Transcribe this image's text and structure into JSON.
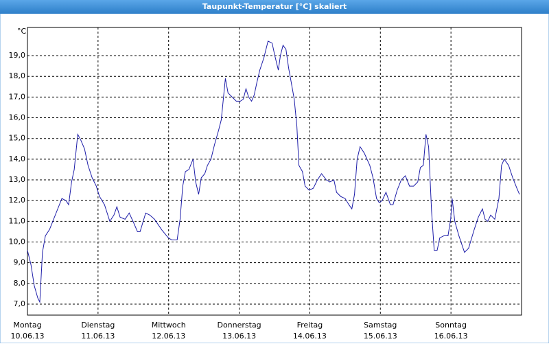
{
  "chart_data": {
    "type": "line",
    "title": "Taupunkt-Temperatur [°C] skaliert",
    "y_label": "°C",
    "xlim": [
      0,
      168
    ],
    "ylim": [
      6.47,
      20.36
    ],
    "grid": true,
    "xticks": [
      {
        "value": 0,
        "label": "Montag"
      },
      {
        "value": 24,
        "label": "Dienstag"
      },
      {
        "value": 48,
        "label": "Mittwoch"
      },
      {
        "value": 72,
        "label": "Donnerstag"
      },
      {
        "value": 96,
        "label": "Freitag"
      },
      {
        "value": 120,
        "label": "Samstag"
      },
      {
        "value": 144,
        "label": "Sonntag"
      }
    ],
    "xtick_dates": [
      "10.06.13",
      "11.06.13",
      "12.06.13",
      "13.06.13",
      "14.06.13",
      "15.06.13",
      "16.06.13"
    ],
    "yticks": [
      {
        "value": 7,
        "label": "7,0"
      },
      {
        "value": 8,
        "label": "8,0"
      },
      {
        "value": 9,
        "label": "9,0"
      },
      {
        "value": 10,
        "label": "10,0"
      },
      {
        "value": 11,
        "label": "11,0"
      },
      {
        "value": 12,
        "label": "12,0"
      },
      {
        "value": 13,
        "label": "13,0"
      },
      {
        "value": 14,
        "label": "14,0"
      },
      {
        "value": 15,
        "label": "15,0"
      },
      {
        "value": 16,
        "label": "16,0"
      },
      {
        "value": 17,
        "label": "17,0"
      },
      {
        "value": 18,
        "label": "18,0"
      },
      {
        "value": 19,
        "label": "19,0"
      }
    ],
    "series": [
      {
        "color": "#1c1ca8",
        "x": [
          0,
          1.2,
          2.3,
          3.5,
          4.2,
          5.1,
          6.1,
          7.5,
          8.9,
          10.3,
          11.7,
          13.1,
          14.0,
          15.0,
          15.9,
          17.1,
          18.2,
          19.4,
          20.6,
          22.0,
          23.4,
          24.5,
          26.2,
          28.0,
          29.4,
          30.4,
          31.5,
          33.2,
          34.6,
          36.2,
          37.4,
          38.3,
          40.2,
          41.6,
          43.2,
          45.6,
          47.9,
          49.1,
          50.9,
          51.9,
          52.8,
          53.7,
          54.9,
          56.3,
          57.2,
          58.2,
          59.1,
          60.3,
          61.2,
          62.4,
          63.6,
          65.0,
          65.9,
          66.6,
          67.3,
          68.2,
          69.6,
          71.0,
          72.4,
          73.4,
          74.3,
          75.2,
          76.2,
          77.1,
          78.0,
          79.0,
          80.4,
          81.8,
          83.2,
          84.1,
          85.3,
          86.0,
          86.9,
          87.9,
          88.8,
          89.7,
          90.7,
          91.6,
          92.3,
          93.5,
          94.4,
          95.8,
          97.2,
          98.6,
          100.0,
          101.6,
          102.8,
          104.2,
          105.1,
          106.5,
          108.0,
          109.3,
          110.3,
          111.2,
          112.1,
          113.1,
          114.5,
          116.4,
          117.5,
          118.7,
          119.6,
          120.6,
          121.9,
          123.4,
          124.3,
          125.7,
          127.1,
          128.5,
          129.9,
          131.3,
          132.7,
          133.6,
          134.6,
          135.5,
          136.4,
          137.4,
          138.3,
          139.3,
          140.2,
          141.6,
          143.0,
          143.9,
          144.4,
          145.3,
          146.7,
          148.6,
          150.0,
          151.9,
          153.3,
          154.7,
          155.6,
          156.5,
          157.5,
          158.9,
          160.3,
          161.2,
          162.1,
          163.6,
          165.0,
          166.4,
          167.3
        ],
        "values": [
          9.6,
          8.9,
          7.9,
          7.3,
          7.1,
          9.5,
          10.3,
          10.6,
          11.1,
          11.6,
          12.1,
          12.0,
          11.8,
          12.9,
          13.5,
          15.2,
          14.9,
          14.5,
          13.7,
          13.1,
          12.7,
          12.2,
          11.8,
          11.0,
          11.3,
          11.7,
          11.2,
          11.1,
          11.4,
          10.9,
          10.5,
          10.5,
          11.4,
          11.3,
          11.1,
          10.6,
          10.2,
          10.1,
          10.1,
          11.1,
          12.7,
          13.4,
          13.5,
          14.0,
          12.9,
          12.3,
          13.1,
          13.3,
          13.7,
          14.0,
          14.7,
          15.4,
          15.9,
          16.9,
          17.9,
          17.2,
          17.0,
          16.8,
          16.8,
          16.9,
          17.4,
          17.0,
          16.8,
          17.1,
          17.7,
          18.3,
          18.9,
          19.7,
          19.6,
          19.0,
          18.3,
          19.0,
          19.5,
          19.3,
          18.4,
          17.7,
          16.9,
          15.6,
          13.7,
          13.4,
          12.7,
          12.5,
          12.6,
          13.0,
          13.3,
          13.0,
          12.9,
          13.0,
          12.4,
          12.2,
          12.1,
          11.8,
          11.6,
          12.3,
          14.0,
          14.6,
          14.3,
          13.7,
          13.1,
          12.1,
          11.9,
          12.0,
          12.4,
          11.8,
          11.8,
          12.5,
          13.0,
          13.2,
          12.7,
          12.7,
          12.9,
          13.6,
          13.7,
          15.2,
          14.6,
          11.5,
          9.6,
          9.6,
          10.2,
          10.3,
          10.3,
          11.1,
          12.1,
          11.0,
          10.3,
          9.5,
          9.7,
          10.6,
          11.2,
          11.6,
          11.1,
          11.0,
          11.3,
          11.1,
          12.1,
          13.7,
          14.0,
          13.7,
          13.1,
          12.6,
          12.3
        ]
      }
    ]
  }
}
